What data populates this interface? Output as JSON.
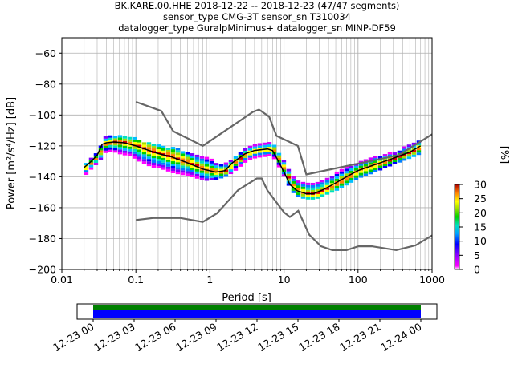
{
  "chart_data": {
    "type": "heatmap",
    "title_lines": [
      "BK.KARE.00.HHE   2018-12-22 -- 2018-12-23  (47/47 segments)",
      "sensor_type CMG-3T sensor_sn T310034",
      "datalogger_type GuralpMinimus+ datalogger_sn MINP-DF59"
    ],
    "xlabel": "Period [s]",
    "ylabel": "Power [m²/s⁴/Hz] [dB]",
    "xscale": "log",
    "xlim": [
      0.01,
      1000
    ],
    "ylim": [
      -200,
      -50
    ],
    "x_ticks": [
      {
        "value": 0.01,
        "label": "0.01"
      },
      {
        "value": 0.1,
        "label": "0.1"
      },
      {
        "value": 1,
        "label": "1"
      },
      {
        "value": 10,
        "label": "10"
      },
      {
        "value": 100,
        "label": "100"
      },
      {
        "value": 1000,
        "label": "1000"
      }
    ],
    "y_ticks": [
      {
        "value": -60,
        "label": "−60"
      },
      {
        "value": -80,
        "label": "−80"
      },
      {
        "value": -100,
        "label": "−100"
      },
      {
        "value": -120,
        "label": "−120"
      },
      {
        "value": -140,
        "label": "−140"
      },
      {
        "value": -160,
        "label": "−160"
      },
      {
        "value": -180,
        "label": "−180"
      },
      {
        "value": -200,
        "label": "−200"
      }
    ],
    "grid": true,
    "colorbar": {
      "label": "[%]",
      "min": 0,
      "max": 30,
      "ticks": [
        {
          "value": 0,
          "label": "0"
        },
        {
          "value": 5,
          "label": "5"
        },
        {
          "value": 10,
          "label": "10"
        },
        {
          "value": 15,
          "label": "15"
        },
        {
          "value": 20,
          "label": "20"
        },
        {
          "value": 25,
          "label": "25"
        },
        {
          "value": 30,
          "label": "30"
        }
      ]
    },
    "nhnm": [
      [
        0.1,
        -91.5
      ],
      [
        0.22,
        -97.4
      ],
      [
        0.32,
        -110.5
      ],
      [
        0.8,
        -120
      ],
      [
        3.8,
        -98
      ],
      [
        4.6,
        -96.5
      ],
      [
        6.3,
        -101
      ],
      [
        7.9,
        -113.5
      ],
      [
        15.4,
        -120
      ],
      [
        20,
        -138.5
      ],
      [
        354.8,
        -126
      ],
      [
        1000,
        -112.5
      ]
    ],
    "nlnm": [
      [
        0.1,
        -168
      ],
      [
        0.17,
        -166.7
      ],
      [
        0.4,
        -166.7
      ],
      [
        0.8,
        -169.2
      ],
      [
        1.24,
        -163.7
      ],
      [
        2.4,
        -148.6
      ],
      [
        4.3,
        -141.1
      ],
      [
        5,
        -141.1
      ],
      [
        6,
        -149
      ],
      [
        10,
        -163
      ],
      [
        12,
        -166
      ],
      [
        15.6,
        -162
      ],
      [
        21.9,
        -177.5
      ],
      [
        31.6,
        -185
      ],
      [
        45,
        -187.5
      ],
      [
        70,
        -187.5
      ],
      [
        101,
        -185
      ],
      [
        154,
        -185
      ],
      [
        328,
        -187.5
      ],
      [
        600,
        -184.4
      ],
      [
        1000,
        -178
      ]
    ],
    "mode_curve": [
      [
        0.02,
        -134
      ],
      [
        0.025,
        -130
      ],
      [
        0.03,
        -126
      ],
      [
        0.035,
        -119
      ],
      [
        0.04,
        -118
      ],
      [
        0.05,
        -117.5
      ],
      [
        0.07,
        -118
      ],
      [
        0.1,
        -120
      ],
      [
        0.15,
        -123
      ],
      [
        0.2,
        -125
      ],
      [
        0.3,
        -127
      ],
      [
        0.5,
        -131
      ],
      [
        0.8,
        -135
      ],
      [
        1.2,
        -137
      ],
      [
        1.6,
        -136
      ],
      [
        2,
        -131
      ],
      [
        3,
        -125
      ],
      [
        4,
        -123
      ],
      [
        6,
        -122
      ],
      [
        7,
        -123
      ],
      [
        8,
        -128
      ],
      [
        10,
        -137
      ],
      [
        12,
        -145
      ],
      [
        15,
        -149
      ],
      [
        20,
        -151
      ],
      [
        25,
        -151
      ],
      [
        35,
        -148
      ],
      [
        50,
        -144
      ],
      [
        70,
        -140
      ],
      [
        100,
        -136
      ],
      [
        150,
        -133
      ],
      [
        300,
        -128
      ],
      [
        500,
        -124
      ],
      [
        700,
        -120
      ]
    ],
    "density_band": [
      {
        "period": 0.02,
        "low": -138,
        "high": -131
      },
      {
        "period": 0.025,
        "low": -133,
        "high": -127
      },
      {
        "period": 0.03,
        "low": -130,
        "high": -121
      },
      {
        "period": 0.035,
        "low": -124,
        "high": -114
      },
      {
        "period": 0.045,
        "low": -123,
        "high": -113
      },
      {
        "period": 0.06,
        "low": -125,
        "high": -113
      },
      {
        "period": 0.08,
        "low": -126,
        "high": -114
      },
      {
        "period": 0.1,
        "low": -129,
        "high": -116
      },
      {
        "period": 0.15,
        "low": -133,
        "high": -118
      },
      {
        "period": 0.2,
        "low": -134,
        "high": -120
      },
      {
        "period": 0.3,
        "low": -137,
        "high": -121
      },
      {
        "period": 0.5,
        "low": -139,
        "high": -124
      },
      {
        "period": 0.8,
        "low": -142,
        "high": -127
      },
      {
        "period": 1.2,
        "low": -141,
        "high": -131
      },
      {
        "period": 1.6,
        "low": -139,
        "high": -131
      },
      {
        "period": 2,
        "low": -136,
        "high": -127
      },
      {
        "period": 3,
        "low": -129,
        "high": -121
      },
      {
        "period": 4,
        "low": -127,
        "high": -119
      },
      {
        "period": 6,
        "low": -126,
        "high": -118
      },
      {
        "period": 7,
        "low": -128,
        "high": -120
      },
      {
        "period": 8,
        "low": -133,
        "high": -124
      },
      {
        "period": 10,
        "low": -142,
        "high": -131
      },
      {
        "period": 12,
        "low": -149,
        "high": -139
      },
      {
        "period": 15,
        "low": -153,
        "high": -143
      },
      {
        "period": 20,
        "low": -154,
        "high": -144
      },
      {
        "period": 25,
        "low": -154,
        "high": -144
      },
      {
        "period": 35,
        "low": -151,
        "high": -141
      },
      {
        "period": 50,
        "low": -148,
        "high": -137
      },
      {
        "period": 70,
        "low": -144,
        "high": -133
      },
      {
        "period": 100,
        "low": -140,
        "high": -130
      },
      {
        "period": 150,
        "low": -137,
        "high": -127
      },
      {
        "period": 300,
        "low": -131,
        "high": -124
      },
      {
        "period": 500,
        "low": -127,
        "high": -118
      },
      {
        "period": 700,
        "low": -124,
        "high": -115
      }
    ],
    "coverage": {
      "start_label": "12-23 00",
      "ticks": [
        "12-23 00",
        "12-23 03",
        "12-23 06",
        "12-23 09",
        "12-23 12",
        "12-23 15",
        "12-23 18",
        "12-23 21",
        "12-24 00"
      ],
      "data_coverage": [
        0,
        1
      ],
      "colors": {
        "available": "#0000ff",
        "used": "#008000"
      }
    }
  },
  "colors": {
    "noise_models": "#666666",
    "mode": "#000000",
    "grid": "#b0b0b0"
  }
}
